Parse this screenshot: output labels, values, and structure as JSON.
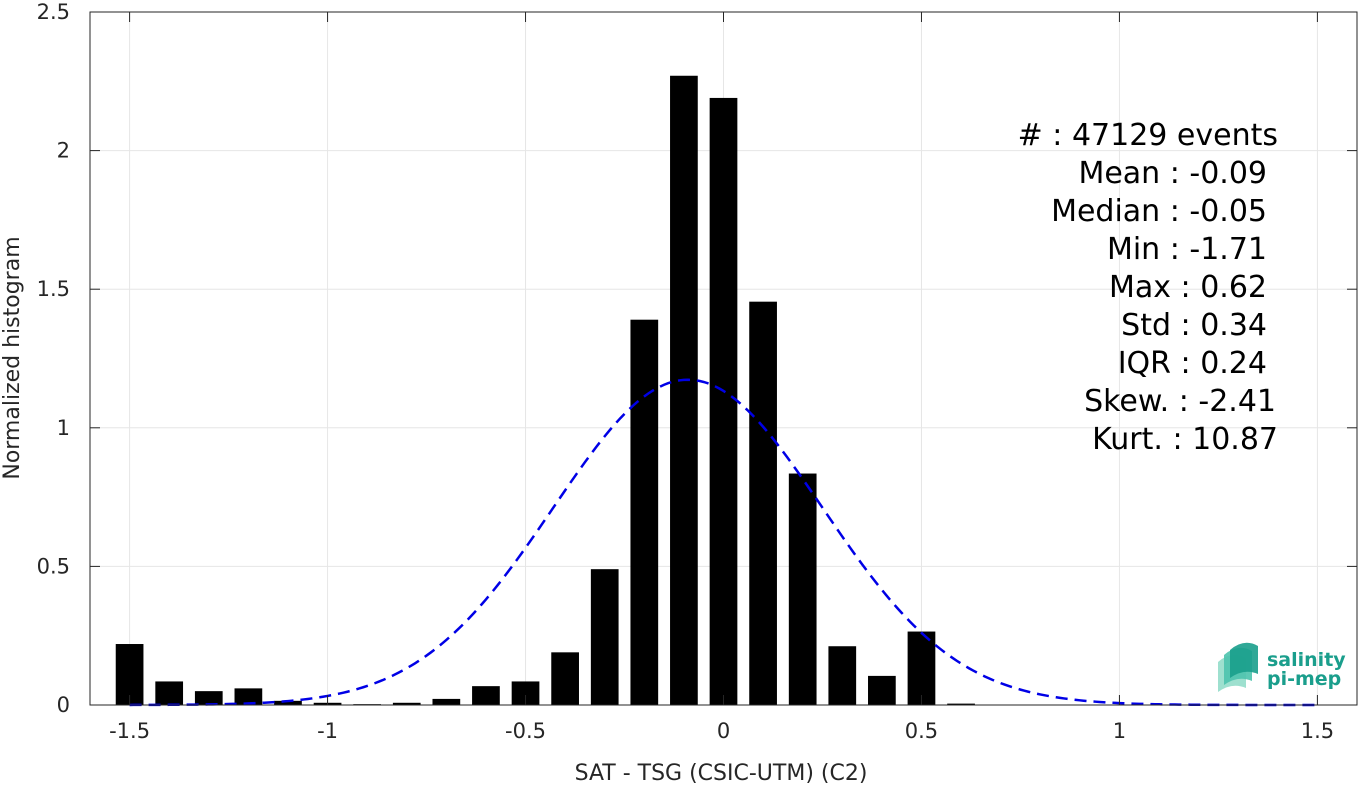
{
  "chart_data": {
    "type": "bar",
    "xlabel": "SAT - TSG (CSIC-UTM) (C2)",
    "ylabel": "Normalized histogram",
    "xlim": [
      -1.6,
      1.6
    ],
    "ylim": [
      0,
      2.5
    ],
    "grid": true,
    "xticks": [
      -1.5,
      -1,
      -0.5,
      0,
      0.5,
      1,
      1.5
    ],
    "xtick_labels": [
      "-1.5",
      "-1",
      "-0.5",
      "0",
      "0.5",
      "1",
      "1.5"
    ],
    "yticks": [
      0,
      0.5,
      1,
      1.5,
      2,
      2.5
    ],
    "ytick_labels": [
      "0",
      "0.5",
      "1",
      "1.5",
      "2",
      "2.5"
    ],
    "bar_width": 0.07,
    "bars": {
      "x": [
        -1.5,
        -1.4,
        -1.3,
        -1.2,
        -1.1,
        -1.0,
        -0.9,
        -0.8,
        -0.7,
        -0.6,
        -0.5,
        -0.4,
        -0.3,
        -0.2,
        -0.1,
        0.0,
        0.1,
        0.2,
        0.3,
        0.4,
        0.5,
        0.6
      ],
      "values": [
        0.22,
        0.085,
        0.05,
        0.06,
        0.015,
        0.008,
        0.003,
        0.008,
        0.022,
        0.068,
        0.085,
        0.19,
        0.49,
        1.39,
        2.27,
        2.19,
        1.455,
        0.835,
        0.212,
        0.105,
        0.265,
        0.005
      ],
      "color": "#000000"
    },
    "fit_curve": {
      "style": "dashed",
      "color": "#0000e6",
      "mean": -0.09,
      "std": 0.34,
      "x_range": [
        -1.5,
        1.5
      ]
    },
    "stats": [
      {
        "label": "#  : 47129 events"
      },
      {
        "label": "Mean : -0.09"
      },
      {
        "label": "Median : -0.05"
      },
      {
        "label": "Min : -1.71"
      },
      {
        "label": "Max : 0.62"
      },
      {
        "label": "Std : 0.34"
      },
      {
        "label": "IQR : 0.24"
      },
      {
        "label": "Skew. : -2.41"
      },
      {
        "label": "Kurt. : 10.87"
      }
    ]
  },
  "logo": {
    "line1": "salinity",
    "line2": "pi-mep",
    "color": "#1a9e8c"
  }
}
